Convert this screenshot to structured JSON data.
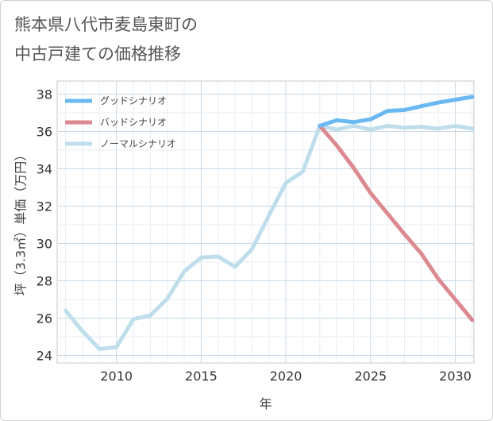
{
  "title_lines": [
    "熊本県八代市麦島東町の",
    "中古戸建ての価格推移"
  ],
  "chart_data": {
    "type": "line",
    "xlabel": "年",
    "ylabel": "坪（3.3㎡）単価（万円）",
    "xlim": [
      2006.5,
      2031.1
    ],
    "ylim": [
      23.6,
      38.7
    ],
    "xticks": [
      2010,
      2015,
      2020,
      2025,
      2030
    ],
    "yticks": [
      24,
      26,
      28,
      30,
      32,
      34,
      36,
      38
    ],
    "grid": true,
    "legend_position": "top-left",
    "series": [
      {
        "name": "グッドシナリオ",
        "color": "#6ab9f2",
        "x": [
          2022,
          2023,
          2024,
          2025,
          2026,
          2027,
          2028,
          2029,
          2030,
          2031
        ],
        "y": [
          36.3,
          36.6,
          36.5,
          36.65,
          37.1,
          37.15,
          37.35,
          37.55,
          37.7,
          37.85
        ]
      },
      {
        "name": "バッドシナリオ",
        "color": "#dc8a91",
        "x": [
          2022,
          2023,
          2024,
          2025,
          2026,
          2027,
          2028,
          2029,
          2030,
          2031
        ],
        "y": [
          36.3,
          35.25,
          34.05,
          32.7,
          31.6,
          30.5,
          29.45,
          28.1,
          27.0,
          25.9
        ]
      },
      {
        "name": "ノーマルシナリオ",
        "color": "#bfdeec",
        "x": [
          2007,
          2008,
          2009,
          2010,
          2011,
          2012,
          2013,
          2014,
          2015,
          2016,
          2017,
          2018,
          2019,
          2020,
          2021,
          2022,
          2023,
          2024,
          2025,
          2026,
          2027,
          2028,
          2029,
          2030,
          2031
        ],
        "y": [
          26.4,
          25.3,
          24.35,
          24.45,
          25.95,
          26.15,
          27.05,
          28.5,
          29.25,
          29.3,
          28.75,
          29.7,
          31.5,
          33.25,
          33.85,
          36.3,
          36.1,
          36.3,
          36.1,
          36.3,
          36.2,
          36.25,
          36.15,
          36.3,
          36.15
        ]
      }
    ]
  }
}
